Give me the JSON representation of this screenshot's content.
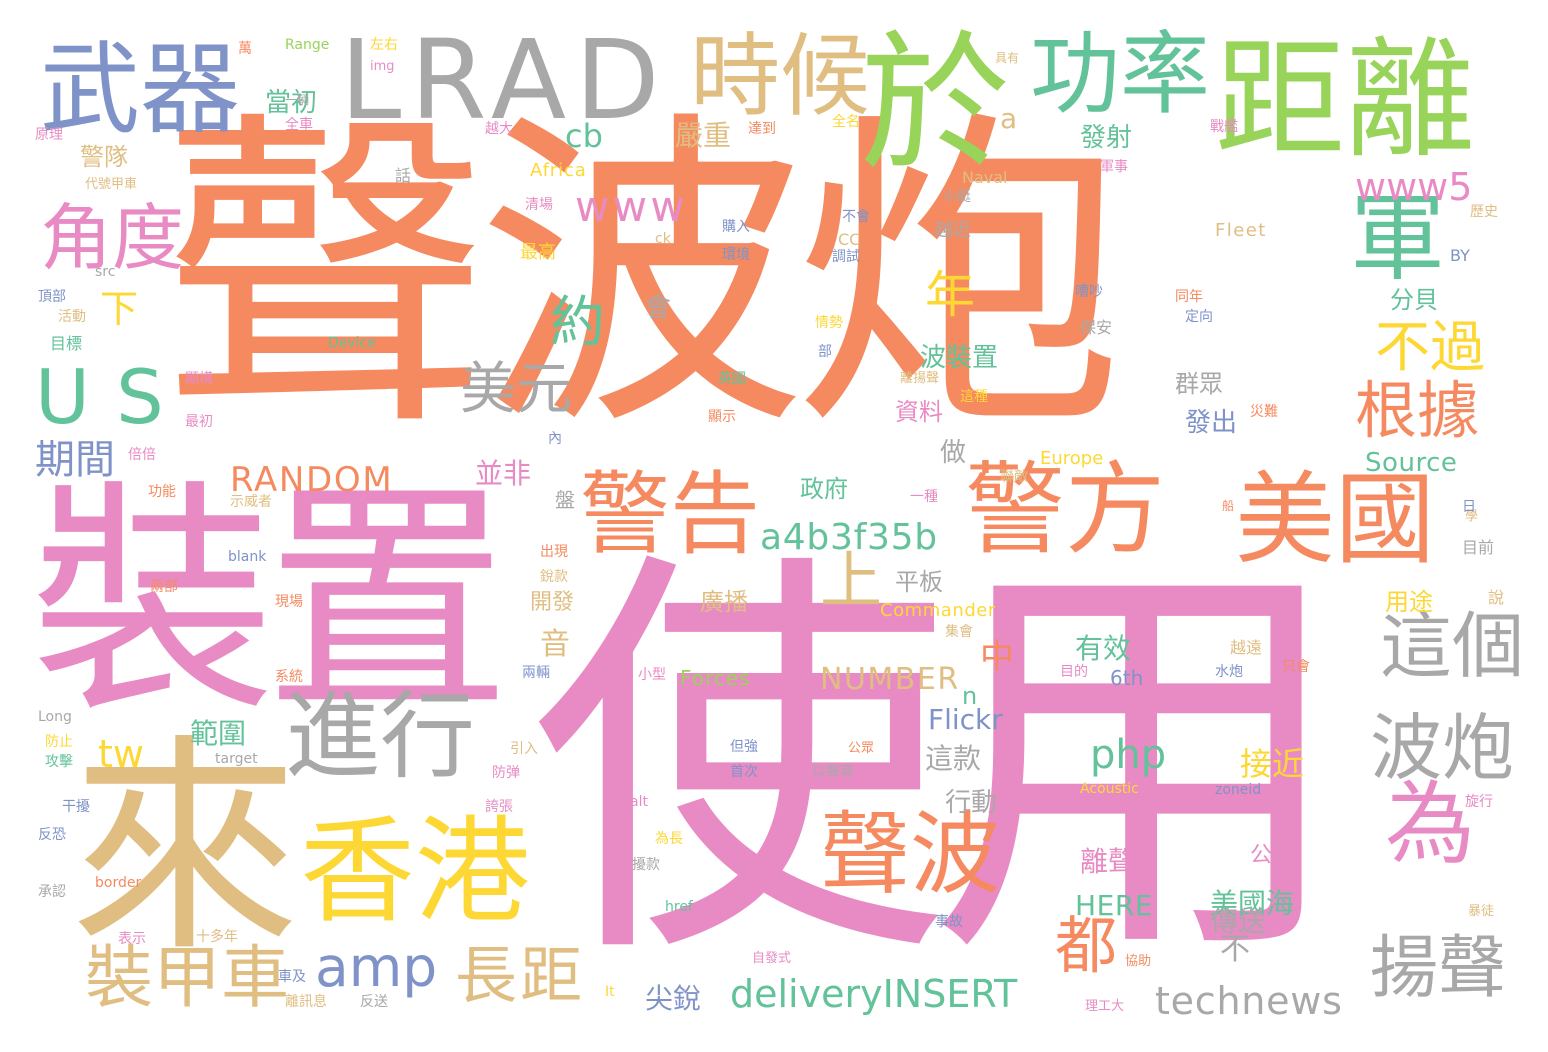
{
  "colors": {
    "orange": "#f58a60",
    "pink": "#e88bc4",
    "tan": "#e0be82",
    "yellow": "#fdd835",
    "green": "#98d35a",
    "teal": "#62c299",
    "blue": "#7f93c8",
    "gray": "#a8a8a8"
  },
  "words": [
    {
      "text": "聲波炮",
      "color": "orange"
    },
    {
      "text": "使用",
      "color": "pink"
    },
    {
      "text": "裝置",
      "color": "pink"
    },
    {
      "text": "來",
      "color": "tan"
    },
    {
      "text": "於",
      "color": "green"
    },
    {
      "text": "距離",
      "color": "green"
    },
    {
      "text": "LRAD",
      "color": "gray"
    },
    {
      "text": "武器",
      "color": "blue"
    },
    {
      "text": "時候",
      "color": "tan"
    },
    {
      "text": "功率",
      "color": "teal"
    },
    {
      "text": "軍",
      "color": "teal"
    },
    {
      "text": "警方",
      "color": "orange"
    },
    {
      "text": "美國",
      "color": "orange"
    },
    {
      "text": "警告",
      "color": "orange"
    },
    {
      "text": "進行",
      "color": "gray"
    },
    {
      "text": "香港",
      "color": "yellow"
    },
    {
      "text": "US",
      "color": "teal"
    },
    {
      "text": "角度",
      "color": "pink"
    },
    {
      "text": "聲波",
      "color": "orange"
    },
    {
      "text": "為",
      "color": "pink"
    },
    {
      "text": "這個",
      "color": "gray"
    },
    {
      "text": "波炮",
      "color": "gray"
    },
    {
      "text": "揚聲",
      "color": "gray"
    },
    {
      "text": "裝甲車",
      "color": "tan"
    },
    {
      "text": "長距",
      "color": "tan"
    },
    {
      "text": "美元",
      "color": "gray"
    },
    {
      "text": "根據",
      "color": "orange"
    },
    {
      "text": "不過",
      "color": "yellow"
    },
    {
      "text": "約",
      "color": "teal"
    },
    {
      "text": "年",
      "color": "yellow"
    },
    {
      "text": "上",
      "color": "tan"
    },
    {
      "text": "都",
      "color": "orange"
    },
    {
      "text": "amp",
      "color": "blue"
    },
    {
      "text": "www",
      "color": "pink"
    },
    {
      "text": "www5",
      "color": "pink"
    },
    {
      "text": "a4b3f35b",
      "color": "teal"
    },
    {
      "text": "technews",
      "color": "gray"
    },
    {
      "text": "deliveryINSERT",
      "color": "teal"
    },
    {
      "text": "php",
      "color": "teal"
    },
    {
      "text": "期間",
      "color": "blue"
    },
    {
      "text": "RANDOM",
      "color": "orange"
    },
    {
      "text": "cb",
      "color": "teal"
    },
    {
      "text": "tw",
      "color": "yellow"
    },
    {
      "text": "下",
      "color": "yellow"
    },
    {
      "text": "中",
      "color": "orange"
    },
    {
      "text": "NUMBER",
      "color": "tan"
    },
    {
      "text": "Flickr",
      "color": "blue"
    },
    {
      "text": "Source",
      "color": "teal"
    },
    {
      "text": "HERE",
      "color": "teal"
    },
    {
      "text": "當初",
      "color": "teal"
    },
    {
      "text": "警隊",
      "color": "tan"
    },
    {
      "text": "嚴重",
      "color": "tan"
    },
    {
      "text": "發射",
      "color": "teal"
    },
    {
      "text": "分貝",
      "color": "teal"
    },
    {
      "text": "波裝置",
      "color": "teal"
    },
    {
      "text": "群眾",
      "color": "gray"
    },
    {
      "text": "發出",
      "color": "blue"
    },
    {
      "text": "資料",
      "color": "pink"
    },
    {
      "text": "政府",
      "color": "teal"
    },
    {
      "text": "並非",
      "color": "pink"
    },
    {
      "text": "平板",
      "color": "gray"
    },
    {
      "text": "廣播",
      "color": "tan"
    },
    {
      "text": "開發",
      "color": "tan"
    },
    {
      "text": "用途",
      "color": "yellow"
    },
    {
      "text": "有效",
      "color": "teal"
    },
    {
      "text": "範圍",
      "color": "teal"
    },
    {
      "text": "這款",
      "color": "gray"
    },
    {
      "text": "行動",
      "color": "gray"
    },
    {
      "text": "接近",
      "color": "yellow"
    },
    {
      "text": "公尺",
      "color": "pink"
    },
    {
      "text": "離聲",
      "color": "pink"
    },
    {
      "text": "美國海",
      "color": "teal"
    },
    {
      "text": "傳送",
      "color": "gray"
    },
    {
      "text": "尖銳",
      "color": "blue"
    },
    {
      "text": "做",
      "color": "gray"
    },
    {
      "text": "會",
      "color": "gray"
    },
    {
      "text": "音",
      "color": "tan"
    },
    {
      "text": "不",
      "color": "gray"
    },
    {
      "text": "a",
      "color": "tan"
    },
    {
      "text": "n",
      "color": "teal"
    },
    {
      "text": "Africa",
      "color": "yellow"
    },
    {
      "text": "Europe",
      "color": "yellow"
    },
    {
      "text": "Commander",
      "color": "yellow"
    },
    {
      "text": "Forces",
      "color": "green"
    },
    {
      "text": "Naval",
      "color": "tan"
    },
    {
      "text": "Fleet",
      "color": "tan"
    },
    {
      "text": "6th",
      "color": "blue"
    },
    {
      "text": "BY",
      "color": "blue"
    },
    {
      "text": "CC",
      "color": "tan"
    },
    {
      "text": "Device",
      "color": "teal"
    },
    {
      "text": "Acoustic",
      "color": "yellow"
    },
    {
      "text": "zoneid",
      "color": "blue"
    },
    {
      "text": "Range",
      "color": "green"
    },
    {
      "text": "img",
      "color": "pink"
    },
    {
      "text": "src",
      "color": "gray"
    },
    {
      "text": "blank",
      "color": "blue"
    },
    {
      "text": "target",
      "color": "gray"
    },
    {
      "text": "Long",
      "color": "gray"
    },
    {
      "text": "border",
      "color": "orange"
    },
    {
      "text": "href",
      "color": "teal"
    },
    {
      "text": "alt",
      "color": "pink"
    },
    {
      "text": "It",
      "color": "yellow"
    },
    {
      "text": "ck",
      "color": "tan"
    },
    {
      "text": "萬",
      "color": "orange"
    },
    {
      "text": "左右",
      "color": "yellow"
    },
    {
      "text": "一輛",
      "color": "gray"
    },
    {
      "text": "全車",
      "color": "pink"
    },
    {
      "text": "原理",
      "color": "pink"
    },
    {
      "text": "代號甲車",
      "color": "tan"
    },
    {
      "text": "話",
      "color": "gray"
    },
    {
      "text": "頂部",
      "color": "blue"
    },
    {
      "text": "活動",
      "color": "tan"
    },
    {
      "text": "目標",
      "color": "teal"
    },
    {
      "text": "越大",
      "color": "pink"
    },
    {
      "text": "達到",
      "color": "orange"
    },
    {
      "text": "清場",
      "color": "pink"
    },
    {
      "text": "最高",
      "color": "yellow"
    },
    {
      "text": "具有",
      "color": "tan"
    },
    {
      "text": "戰艦",
      "color": "pink"
    },
    {
      "text": "軍事",
      "color": "pink"
    },
    {
      "text": "歷史",
      "color": "tan"
    },
    {
      "text": "全名",
      "color": "yellow"
    },
    {
      "text": "小艇",
      "color": "gray"
    },
    {
      "text": "購入",
      "color": "blue"
    },
    {
      "text": "環境",
      "color": "blue"
    },
    {
      "text": "不會",
      "color": "blue"
    },
    {
      "text": "調試",
      "color": "blue"
    },
    {
      "text": "越近",
      "color": "gray"
    },
    {
      "text": "嘈吵",
      "color": "blue"
    },
    {
      "text": "保安",
      "color": "gray"
    },
    {
      "text": "同年",
      "color": "orange"
    },
    {
      "text": "定向",
      "color": "blue"
    },
    {
      "text": "情勢",
      "color": "yellow"
    },
    {
      "text": "部",
      "color": "blue"
    },
    {
      "text": "英國",
      "color": "teal"
    },
    {
      "text": "離揚聲",
      "color": "tan"
    },
    {
      "text": "這種",
      "color": "yellow"
    },
    {
      "text": "災難",
      "color": "orange"
    },
    {
      "text": "顯示",
      "color": "orange"
    },
    {
      "text": "內",
      "color": "blue"
    },
    {
      "text": "顯構",
      "color": "pink"
    },
    {
      "text": "最初",
      "color": "pink"
    },
    {
      "text": "倍倍",
      "color": "pink"
    },
    {
      "text": "功能",
      "color": "orange"
    },
    {
      "text": "示威者",
      "color": "tan"
    },
    {
      "text": "一種",
      "color": "pink"
    },
    {
      "text": "聯敵",
      "color": "tan"
    },
    {
      "text": "盤",
      "color": "gray"
    },
    {
      "text": "出現",
      "color": "orange"
    },
    {
      "text": "銳款",
      "color": "tan"
    },
    {
      "text": "現場",
      "color": "orange"
    },
    {
      "text": "兩部",
      "color": "orange"
    },
    {
      "text": "集會",
      "color": "tan"
    },
    {
      "text": "越遠",
      "color": "tan"
    },
    {
      "text": "只會",
      "color": "orange"
    },
    {
      "text": "目的",
      "color": "pink"
    },
    {
      "text": "水炮",
      "color": "blue"
    },
    {
      "text": "小型",
      "color": "pink"
    },
    {
      "text": "兩輛",
      "color": "blue"
    },
    {
      "text": "系統",
      "color": "orange"
    },
    {
      "text": "但強",
      "color": "blue"
    },
    {
      "text": "首次",
      "color": "blue"
    },
    {
      "text": "以聲音",
      "color": "gray"
    },
    {
      "text": "公眾",
      "color": "orange"
    },
    {
      "text": "引入",
      "color": "tan"
    },
    {
      "text": "防弹",
      "color": "pink"
    },
    {
      "text": "防止",
      "color": "yellow"
    },
    {
      "text": "攻擊",
      "color": "teal"
    },
    {
      "text": "干擾",
      "color": "blue"
    },
    {
      "text": "反恐",
      "color": "blue"
    },
    {
      "text": "誇張",
      "color": "pink"
    },
    {
      "text": "為長",
      "color": "yellow"
    },
    {
      "text": "擾款",
      "color": "gray"
    },
    {
      "text": "承認",
      "color": "gray"
    },
    {
      "text": "表示",
      "color": "pink"
    },
    {
      "text": "十多年",
      "color": "tan"
    },
    {
      "text": "車及",
      "color": "blue"
    },
    {
      "text": "離訊息",
      "color": "tan"
    },
    {
      "text": "反送",
      "color": "gray"
    },
    {
      "text": "自發式",
      "color": "pink"
    },
    {
      "text": "事故",
      "color": "blue"
    },
    {
      "text": "協助",
      "color": "orange"
    },
    {
      "text": "理工大",
      "color": "pink"
    },
    {
      "text": "學",
      "color": "tan"
    },
    {
      "text": "旋行",
      "color": "pink"
    },
    {
      "text": "目前",
      "color": "gray"
    },
    {
      "text": "日",
      "color": "blue"
    },
    {
      "text": "說",
      "color": "tan"
    },
    {
      "text": "船",
      "color": "orange"
    },
    {
      "text": "暴徒",
      "color": "tan"
    }
  ]
}
